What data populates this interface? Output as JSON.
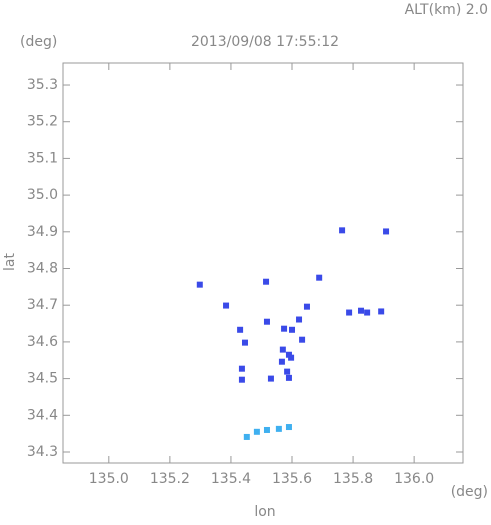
{
  "chart_data": {
    "type": "scatter",
    "title": "2013/09/08 17:55:12",
    "altitude_label": "ALT(km) 2.0",
    "y_unit": "(deg)",
    "x_unit": "(deg)",
    "xlabel": "lon",
    "ylabel": "lat",
    "xlim": [
      134.85,
      136.16
    ],
    "ylim": [
      34.27,
      35.36
    ],
    "xticks": [
      {
        "value": 135.0,
        "label": "135.0"
      },
      135.2,
      135.4,
      135.6,
      135.8,
      {
        "value": 136.0,
        "label": "136.0"
      }
    ],
    "yticks": [
      35.3,
      35.2,
      35.1,
      {
        "value": 35.0,
        "label": "35.0"
      },
      34.9,
      34.8,
      34.7,
      34.6,
      34.5,
      34.4,
      34.3
    ],
    "series": [
      {
        "color": "#3a4ae8",
        "x": [
          135.908,
          135.764,
          135.298,
          135.515,
          135.689,
          135.384,
          135.649,
          135.787,
          135.826,
          135.846,
          135.892,
          135.43,
          135.446,
          135.518,
          135.574,
          135.6,
          135.623,
          135.633,
          135.57,
          135.59,
          135.567,
          135.597,
          135.584,
          135.59,
          135.436,
          135.436,
          135.531
        ],
        "y": [
          34.901,
          34.904,
          34.756,
          34.764,
          34.775,
          34.699,
          34.696,
          34.68,
          34.685,
          34.68,
          34.683,
          34.633,
          34.598,
          34.655,
          34.636,
          34.633,
          34.661,
          34.606,
          34.579,
          34.565,
          34.546,
          34.557,
          34.519,
          34.502,
          34.527,
          34.497,
          34.5
        ]
      },
      {
        "color": "#3fb0f0",
        "x": [
          135.452,
          135.485,
          135.518,
          135.557,
          135.59
        ],
        "y": [
          34.341,
          34.355,
          34.36,
          34.363,
          34.368
        ]
      }
    ]
  }
}
